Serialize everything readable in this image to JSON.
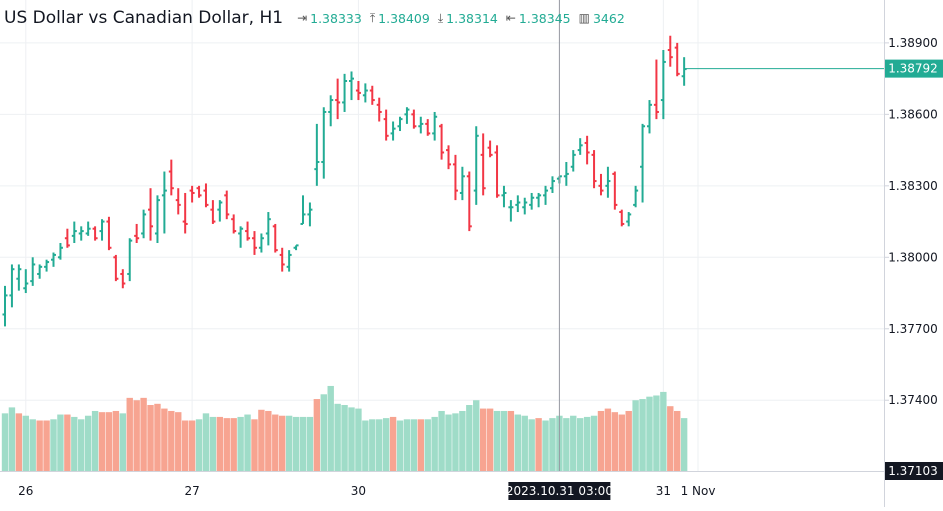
{
  "header": {
    "title": "US Dollar vs Canadian Dollar, H1",
    "open_icon": "open-arrow-icon",
    "open": "1.38333",
    "high_icon": "high-arrow-icon",
    "high": "1.38409",
    "low_icon": "low-arrow-icon",
    "low": "1.38314",
    "close_icon": "close-arrow-icon",
    "close": "1.38345",
    "volume_icon": "volume-bars-icon",
    "volume": "3462"
  },
  "colors": {
    "up": "#22ab94",
    "down": "#f23645",
    "up_volume": "#9fdcc8",
    "down_volume": "#f7a491",
    "grid": "#eef0f3",
    "axis_text": "#131722"
  },
  "chart_data": {
    "type": "ohlc",
    "price_axis": {
      "ticks": [
        "1.38900",
        "1.38600",
        "1.38300",
        "1.38000",
        "1.37700",
        "1.37400"
      ],
      "tick_values": [
        1.389,
        1.386,
        1.383,
        1.38,
        1.377,
        1.374
      ],
      "bottom_label": "1.37103",
      "bottom_value": 1.37103,
      "current_price_label": "1.38792",
      "current_price": 1.38792,
      "range": [
        1.37103,
        1.3908
      ]
    },
    "time_axis": {
      "labels": [
        "26",
        "27",
        "30",
        "31",
        "1 Nov"
      ],
      "label_bar_index": [
        3,
        27,
        51,
        95,
        100
      ],
      "crosshair_label": "2023.10.31 03:00",
      "crosshair_bar_index": 80
    },
    "ohlc": [
      [
        1.3776,
        1.3788,
        1.3771,
        1.3784
      ],
      [
        1.3784,
        1.3797,
        1.3779,
        1.3795
      ],
      [
        1.3791,
        1.3797,
        1.3786,
        1.3795
      ],
      [
        1.3787,
        1.3795,
        1.3785,
        1.3789
      ],
      [
        1.379,
        1.38,
        1.3788,
        1.3797
      ],
      [
        1.3793,
        1.3797,
        1.3791,
        1.3796
      ],
      [
        1.3796,
        1.3799,
        1.3794,
        1.3798
      ],
      [
        1.3799,
        1.3802,
        1.3796,
        1.3801
      ],
      [
        1.38,
        1.3806,
        1.3799,
        1.3804
      ],
      [
        1.3808,
        1.3812,
        1.3804,
        1.3805
      ],
      [
        1.3809,
        1.3815,
        1.3806,
        1.3811
      ],
      [
        1.381,
        1.3813,
        1.3807,
        1.3811
      ],
      [
        1.381,
        1.3815,
        1.3809,
        1.3812
      ],
      [
        1.3812,
        1.3813,
        1.3807,
        1.3808
      ],
      [
        1.3811,
        1.3816,
        1.3807,
        1.3815
      ],
      [
        1.3815,
        1.3817,
        1.3803,
        1.3804
      ],
      [
        1.38,
        1.3801,
        1.379,
        1.3791
      ],
      [
        1.3793,
        1.3795,
        1.3787,
        1.3789
      ],
      [
        1.3793,
        1.3808,
        1.379,
        1.3807
      ],
      [
        1.3809,
        1.3814,
        1.3806,
        1.3808
      ],
      [
        1.381,
        1.382,
        1.3808,
        1.3818
      ],
      [
        1.382,
        1.3829,
        1.3807,
        1.3813
      ],
      [
        1.381,
        1.3826,
        1.3806,
        1.3824
      ],
      [
        1.3826,
        1.3836,
        1.381,
        1.3828
      ],
      [
        1.3836,
        1.3841,
        1.3826,
        1.3829
      ],
      [
        1.3824,
        1.3829,
        1.3818,
        1.3822
      ],
      [
        1.3815,
        1.3827,
        1.381,
        1.3814
      ],
      [
        1.3828,
        1.383,
        1.3823,
        1.3827
      ],
      [
        1.3829,
        1.383,
        1.3825,
        1.3826
      ],
      [
        1.3828,
        1.3831,
        1.3821,
        1.3822
      ],
      [
        1.382,
        1.3824,
        1.3814,
        1.3815
      ],
      [
        1.382,
        1.3824,
        1.3815,
        1.3823
      ],
      [
        1.3826,
        1.3828,
        1.3816,
        1.3818
      ],
      [
        1.3816,
        1.3818,
        1.381,
        1.3811
      ],
      [
        1.381,
        1.3813,
        1.3804,
        1.3812
      ],
      [
        1.3811,
        1.3815,
        1.3807,
        1.3808
      ],
      [
        1.3808,
        1.3811,
        1.3801,
        1.3804
      ],
      [
        1.3804,
        1.381,
        1.3802,
        1.3808
      ],
      [
        1.381,
        1.3819,
        1.3805,
        1.3816
      ],
      [
        1.3813,
        1.3814,
        1.3802,
        1.3803
      ],
      [
        1.3801,
        1.3804,
        1.3794,
        1.3797
      ],
      [
        1.3796,
        1.3803,
        1.3794,
        1.3801
      ],
      [
        1.3804,
        1.3805,
        1.3803,
        1.3805
      ],
      [
        1.3814,
        1.3826,
        1.3814,
        1.3818
      ],
      [
        1.3818,
        1.3823,
        1.3813,
        1.382
      ],
      [
        1.3837,
        1.3856,
        1.383,
        1.384
      ],
      [
        1.384,
        1.3863,
        1.3833,
        1.3861
      ],
      [
        1.3861,
        1.3868,
        1.3855,
        1.3866
      ],
      [
        1.3866,
        1.3875,
        1.3858,
        1.3865
      ],
      [
        1.3865,
        1.3877,
        1.3861,
        1.3874
      ],
      [
        1.3874,
        1.3878,
        1.3866,
        1.3875
      ],
      [
        1.387,
        1.3874,
        1.3866,
        1.3869
      ],
      [
        1.3868,
        1.3873,
        1.3865,
        1.387
      ],
      [
        1.387,
        1.3872,
        1.3864,
        1.3866
      ],
      [
        1.3864,
        1.3867,
        1.3857,
        1.3861
      ],
      [
        1.3858,
        1.3862,
        1.3849,
        1.3851
      ],
      [
        1.3852,
        1.3857,
        1.3849,
        1.3854
      ],
      [
        1.3855,
        1.3859,
        1.3853,
        1.3858
      ],
      [
        1.386,
        1.3863,
        1.3856,
        1.3862
      ],
      [
        1.386,
        1.3862,
        1.3854,
        1.3855
      ],
      [
        1.3855,
        1.3859,
        1.3852,
        1.3856
      ],
      [
        1.3856,
        1.3858,
        1.3851,
        1.3852
      ],
      [
        1.3852,
        1.3861,
        1.3849,
        1.3859
      ],
      [
        1.3855,
        1.3856,
        1.3841,
        1.3844
      ],
      [
        1.3845,
        1.3847,
        1.3837,
        1.3839
      ],
      [
        1.3839,
        1.3843,
        1.3824,
        1.3828
      ],
      [
        1.3827,
        1.3838,
        1.3824,
        1.3834
      ],
      [
        1.3834,
        1.3836,
        1.3811,
        1.3813
      ],
      [
        1.3828,
        1.3855,
        1.3822,
        1.3851
      ],
      [
        1.3843,
        1.3852,
        1.3826,
        1.3829
      ],
      [
        1.3846,
        1.3849,
        1.3842,
        1.3843
      ],
      [
        1.3844,
        1.3847,
        1.3825,
        1.3826
      ],
      [
        1.3826,
        1.383,
        1.3821,
        1.3827
      ],
      [
        1.3821,
        1.3824,
        1.3815,
        1.3821
      ],
      [
        1.3822,
        1.3826,
        1.3819,
        1.3823
      ],
      [
        1.3821,
        1.3825,
        1.3818,
        1.3823
      ],
      [
        1.3822,
        1.3827,
        1.382,
        1.3825
      ],
      [
        1.3825,
        1.3827,
        1.3821,
        1.3826
      ],
      [
        1.3826,
        1.383,
        1.3822,
        1.3828
      ],
      [
        1.3829,
        1.3834,
        1.3827,
        1.3832
      ],
      [
        1.3833,
        1.3834,
        1.3831,
        1.3834
      ],
      [
        1.3834,
        1.384,
        1.383,
        1.3835
      ],
      [
        1.3838,
        1.3845,
        1.3836,
        1.3843
      ],
      [
        1.3845,
        1.385,
        1.3843,
        1.3847
      ],
      [
        1.3848,
        1.3851,
        1.3839,
        1.3844
      ],
      [
        1.3843,
        1.3845,
        1.3829,
        1.3832
      ],
      [
        1.383,
        1.3835,
        1.3826,
        1.3828
      ],
      [
        1.383,
        1.3838,
        1.3825,
        1.3832
      ],
      [
        1.3835,
        1.3836,
        1.382,
        1.3822
      ],
      [
        1.3819,
        1.382,
        1.3813,
        1.3814
      ],
      [
        1.3815,
        1.3819,
        1.3813,
        1.3818
      ],
      [
        1.3822,
        1.383,
        1.3821,
        1.3828
      ],
      [
        1.3838,
        1.3856,
        1.3823,
        1.3855
      ],
      [
        1.3855,
        1.3866,
        1.3852,
        1.3864
      ],
      [
        1.3864,
        1.3883,
        1.3858,
        1.3861
      ],
      [
        1.3866,
        1.3887,
        1.3858,
        1.3882
      ],
      [
        1.3887,
        1.3893,
        1.388,
        1.3884
      ],
      [
        1.3888,
        1.389,
        1.3876,
        1.3877
      ],
      [
        1.3876,
        1.3884,
        1.3872,
        1.3879
      ]
    ],
    "volume": [
      [
        1.37345,
        1
      ],
      [
        1.3737,
        1
      ],
      [
        1.37345,
        0
      ],
      [
        1.37335,
        1
      ],
      [
        1.3732,
        1
      ],
      [
        1.37315,
        0
      ],
      [
        1.37315,
        0
      ],
      [
        1.3732,
        1
      ],
      [
        1.3734,
        1
      ],
      [
        1.3734,
        0
      ],
      [
        1.3733,
        1
      ],
      [
        1.3732,
        1
      ],
      [
        1.37335,
        1
      ],
      [
        1.37355,
        1
      ],
      [
        1.3735,
        0
      ],
      [
        1.3735,
        0
      ],
      [
        1.37355,
        0
      ],
      [
        1.37345,
        1
      ],
      [
        1.3741,
        0
      ],
      [
        1.374,
        0
      ],
      [
        1.3741,
        0
      ],
      [
        1.3738,
        0
      ],
      [
        1.37385,
        0
      ],
      [
        1.37365,
        0
      ],
      [
        1.37355,
        0
      ],
      [
        1.3735,
        0
      ],
      [
        1.37315,
        0
      ],
      [
        1.37315,
        0
      ],
      [
        1.3732,
        1
      ],
      [
        1.37345,
        1
      ],
      [
        1.3733,
        1
      ],
      [
        1.3733,
        0
      ],
      [
        1.37325,
        0
      ],
      [
        1.37325,
        0
      ],
      [
        1.3733,
        1
      ],
      [
        1.3734,
        1
      ],
      [
        1.3732,
        0
      ],
      [
        1.3736,
        0
      ],
      [
        1.37355,
        0
      ],
      [
        1.3734,
        0
      ],
      [
        1.37335,
        0
      ],
      [
        1.37335,
        1
      ],
      [
        1.3733,
        1
      ],
      [
        1.3733,
        1
      ],
      [
        1.3733,
        1
      ],
      [
        1.37405,
        0
      ],
      [
        1.37425,
        1
      ],
      [
        1.3746,
        1
      ],
      [
        1.37385,
        1
      ],
      [
        1.3738,
        1
      ],
      [
        1.3737,
        1
      ],
      [
        1.37365,
        1
      ],
      [
        1.37315,
        1
      ],
      [
        1.3732,
        1
      ],
      [
        1.3732,
        1
      ],
      [
        1.37325,
        1
      ],
      [
        1.3733,
        0
      ],
      [
        1.37315,
        1
      ],
      [
        1.3732,
        1
      ],
      [
        1.3732,
        1
      ],
      [
        1.3732,
        0
      ],
      [
        1.3732,
        1
      ],
      [
        1.3733,
        1
      ],
      [
        1.37355,
        1
      ],
      [
        1.3734,
        1
      ],
      [
        1.37345,
        1
      ],
      [
        1.37355,
        1
      ],
      [
        1.3738,
        1
      ],
      [
        1.374,
        1
      ],
      [
        1.37365,
        0
      ],
      [
        1.37365,
        0
      ],
      [
        1.37355,
        1
      ],
      [
        1.37355,
        1
      ],
      [
        1.37355,
        0
      ],
      [
        1.3734,
        1
      ],
      [
        1.37335,
        1
      ],
      [
        1.3732,
        1
      ],
      [
        1.37325,
        0
      ],
      [
        1.37315,
        1
      ],
      [
        1.37325,
        1
      ],
      [
        1.37335,
        1
      ],
      [
        1.37325,
        1
      ],
      [
        1.37335,
        1
      ],
      [
        1.37325,
        1
      ],
      [
        1.3733,
        1
      ],
      [
        1.37335,
        1
      ],
      [
        1.37355,
        0
      ],
      [
        1.37365,
        0
      ],
      [
        1.3735,
        0
      ],
      [
        1.3734,
        0
      ],
      [
        1.37355,
        0
      ],
      [
        1.374,
        1
      ],
      [
        1.37405,
        1
      ],
      [
        1.37415,
        1
      ],
      [
        1.3742,
        1
      ],
      [
        1.37435,
        1
      ],
      [
        1.37375,
        0
      ],
      [
        1.37355,
        0
      ],
      [
        1.37325,
        1
      ]
    ]
  }
}
